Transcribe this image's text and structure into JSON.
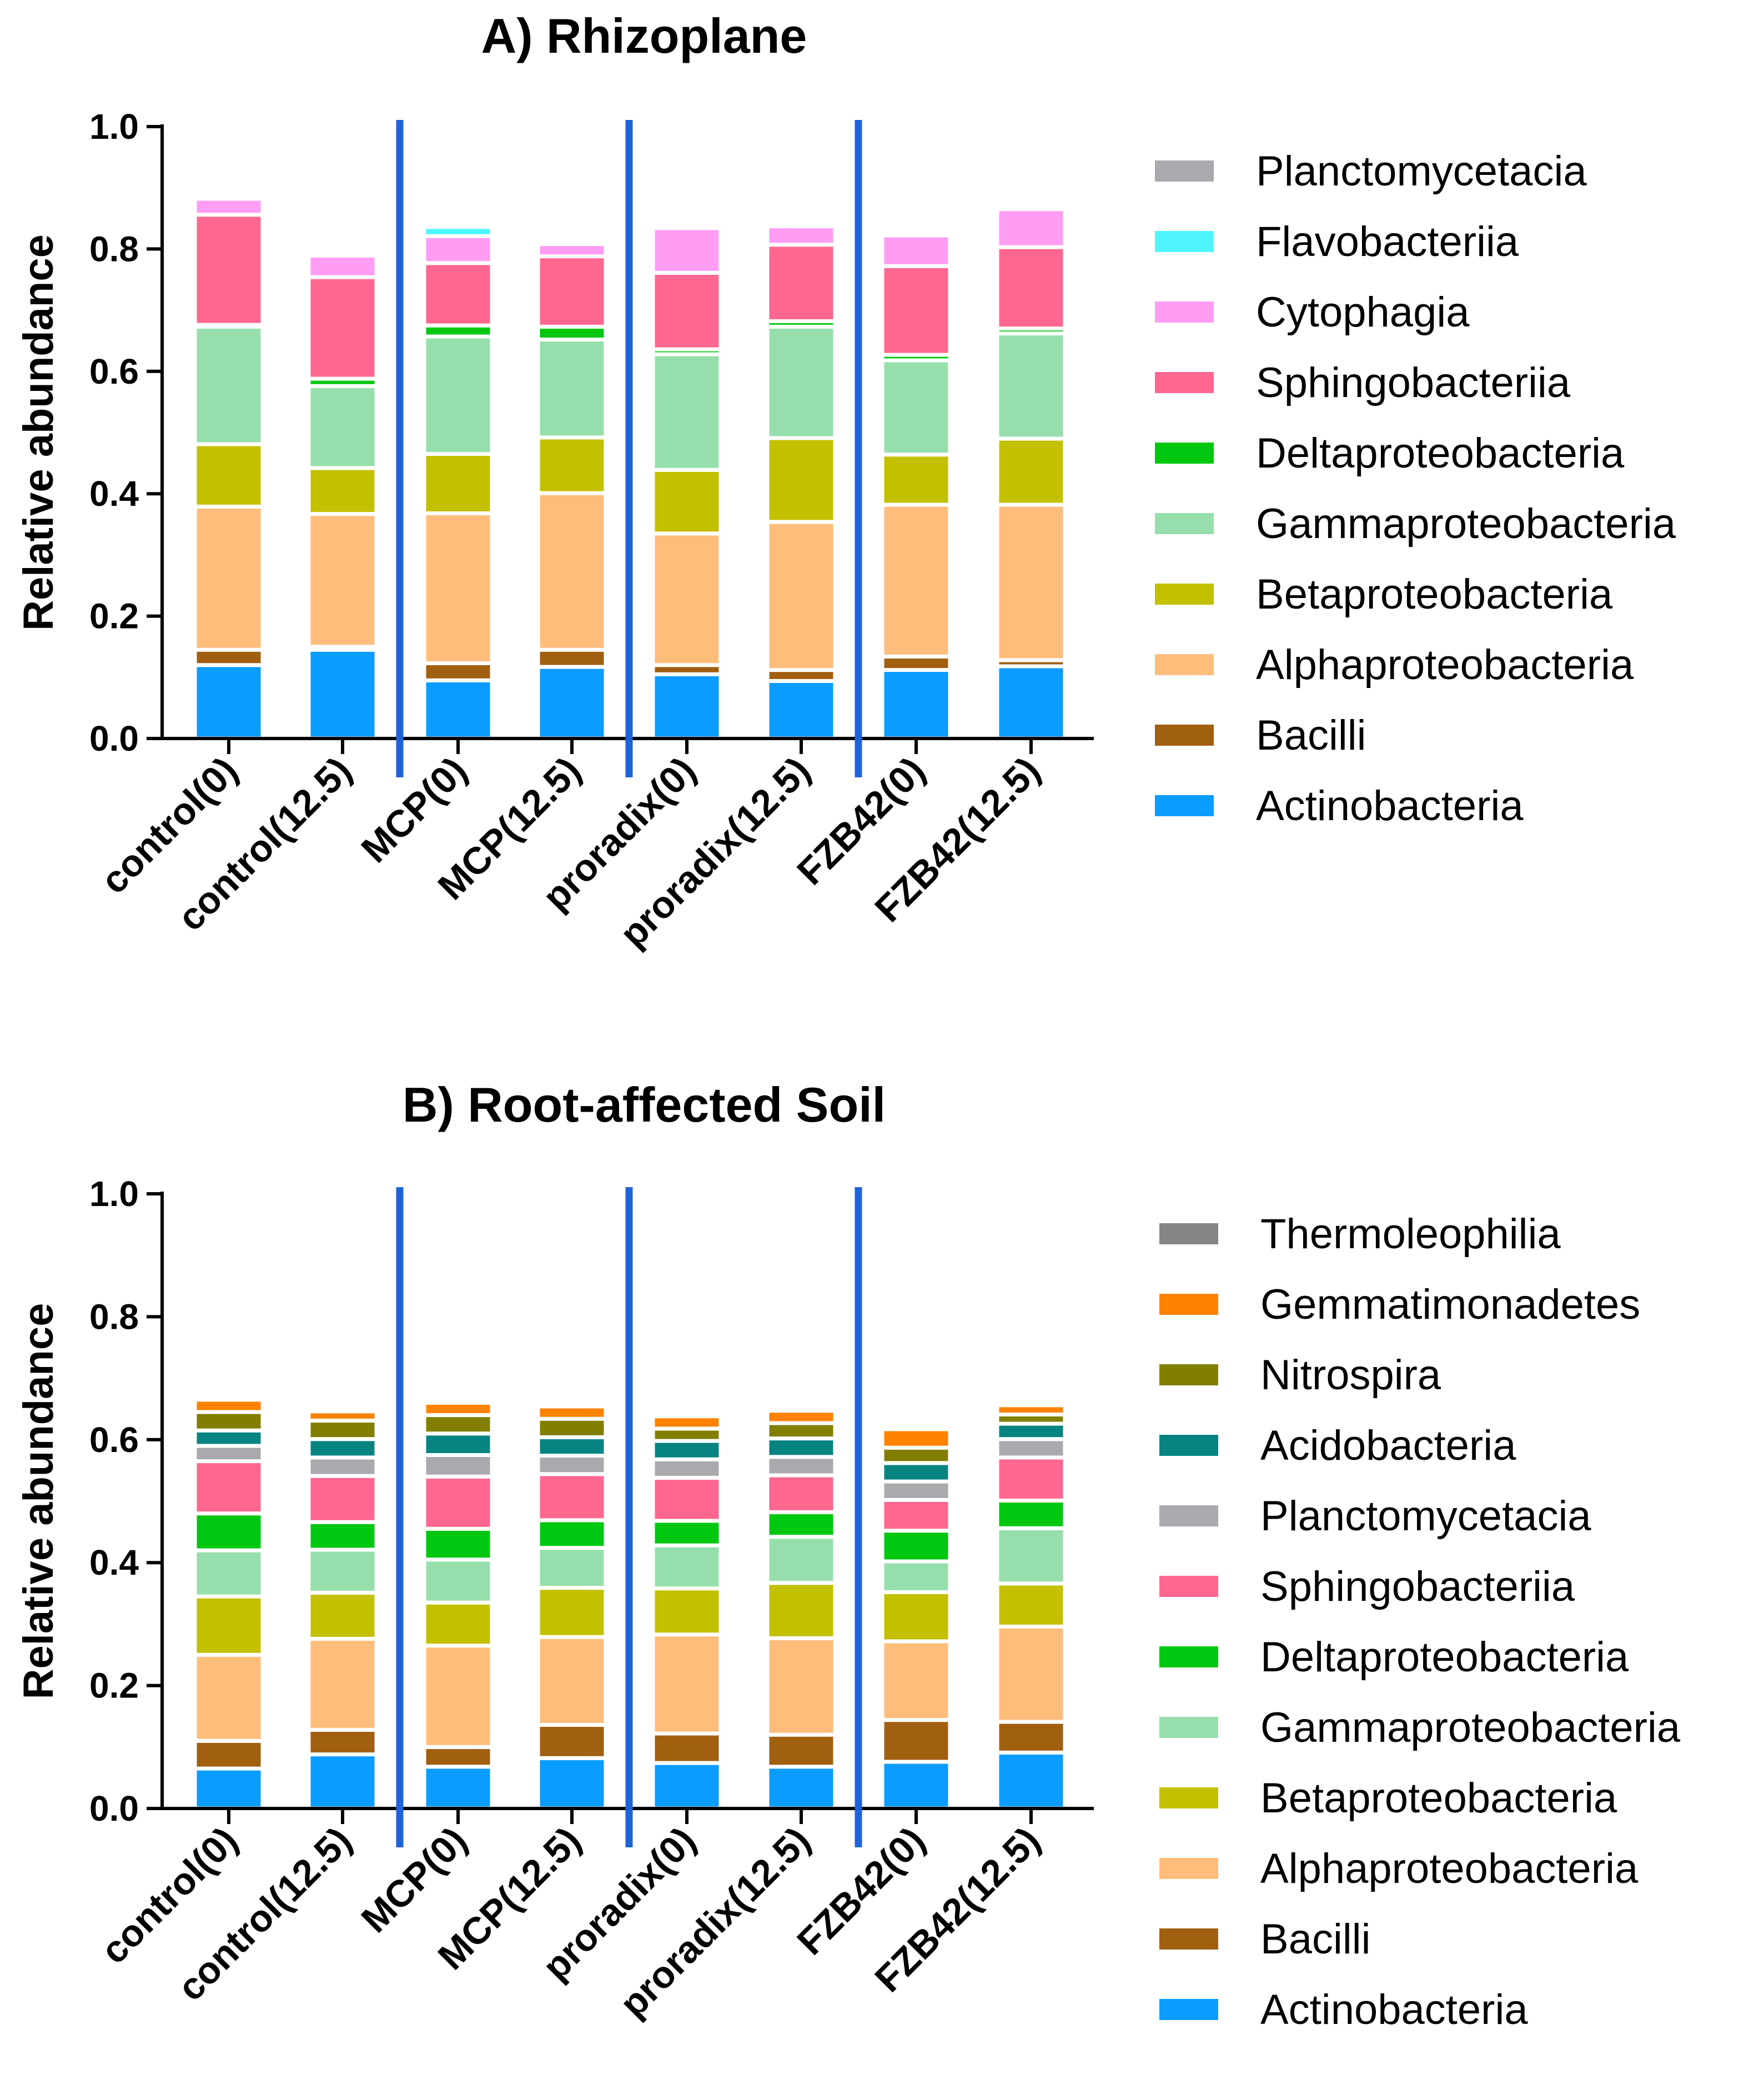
{
  "colors": {
    "Actinobacteria": "#0a9cff",
    "Bacilli": "#a15f10",
    "Alphaproteobacteria": "#ffbd7c",
    "Betaproteobacteria": "#c3c000",
    "Gammaproteobacteria": "#96dfac",
    "Deltaproteobacteria": "#00c811",
    "Sphingobacteriia": "#ff6690",
    "Cytophagia": "#ff9cf4",
    "Flavobacteriia": "#4ef5ff",
    "Planctomycetacia": "#a9a9ae",
    "Acidobacteria": "#078482",
    "Nitrospira": "#827f00",
    "Gemmatimonadetes": "#ff8200",
    "Thermoleophilia": "#858585",
    "separator": "#1f63d8"
  },
  "chart_data": [
    {
      "type": "bar",
      "stacked": true,
      "title": "A) Rhizoplane",
      "xlabel": "",
      "ylabel": "Relative abundance",
      "ylim": [
        0,
        1.0
      ],
      "yticks": [
        "0.0",
        "0.2",
        "0.4",
        "0.6",
        "0.8",
        "1.0"
      ],
      "categories": [
        "control(0)",
        "control(12.5)",
        "MCP(0)",
        "MCP(12.5)",
        "proradix(0)",
        "proradix(12.5)",
        "FZB42(0)",
        "FZB42(12.5)"
      ],
      "group_separators_after": [
        2,
        4,
        6
      ],
      "series": [
        {
          "name": "Actinobacteria",
          "values": [
            0.12,
            0.145,
            0.095,
            0.117,
            0.105,
            0.094,
            0.112,
            0.118
          ]
        },
        {
          "name": "Bacilli",
          "values": [
            0.025,
            0.005,
            0.028,
            0.028,
            0.015,
            0.018,
            0.022,
            0.01
          ]
        },
        {
          "name": "Alphaproteobacteria",
          "values": [
            0.234,
            0.217,
            0.245,
            0.256,
            0.215,
            0.242,
            0.248,
            0.254
          ]
        },
        {
          "name": "Betaproteobacteria",
          "values": [
            0.102,
            0.075,
            0.097,
            0.091,
            0.104,
            0.137,
            0.082,
            0.108
          ]
        },
        {
          "name": "Gammaproteobacteria",
          "values": [
            0.192,
            0.134,
            0.192,
            0.16,
            0.189,
            0.182,
            0.154,
            0.172
          ]
        },
        {
          "name": "Deltaproteobacteria",
          "values": [
            0.003,
            0.012,
            0.018,
            0.021,
            0.008,
            0.009,
            0.009,
            0.008
          ]
        },
        {
          "name": "Sphingobacteriia",
          "values": [
            0.18,
            0.166,
            0.102,
            0.115,
            0.125,
            0.125,
            0.145,
            0.133
          ]
        },
        {
          "name": "Cytophagia",
          "values": [
            0.026,
            0.035,
            0.044,
            0.02,
            0.073,
            0.03,
            0.05,
            0.062
          ]
        },
        {
          "name": "Flavobacteriia",
          "values": [
            0.0,
            0.0,
            0.015,
            0.005,
            0.0,
            0.0,
            0.0,
            0.0
          ]
        },
        {
          "name": "Planctomycetacia",
          "values": [
            0.0,
            0.0,
            0.005,
            0.006,
            0.0,
            0.0,
            0.0,
            0.0
          ]
        }
      ],
      "legend": [
        "Planctomycetacia",
        "Flavobacteriia",
        "Cytophagia",
        "Sphingobacteriia",
        "Deltaproteobacteria",
        "Gammaproteobacteria",
        "Betaproteobacteria",
        "Alphaproteobacteria",
        "Bacilli",
        "Actinobacteria"
      ],
      "legend_position": "right"
    },
    {
      "type": "bar",
      "stacked": true,
      "title": "B) Root-affected Soil",
      "xlabel": "",
      "ylabel": "Relative abundance",
      "ylim": [
        0,
        1.0
      ],
      "yticks": [
        "0.0",
        "0.2",
        "0.4",
        "0.6",
        "0.8",
        "1.0"
      ],
      "categories": [
        "control(0)",
        "control(12.5)",
        "MCP(0)",
        "MCP(12.5)",
        "proradix(0)",
        "proradix(12.5)",
        "FZB42(0)",
        "FZB42(12.5)"
      ],
      "group_separators_after": [
        2,
        4,
        6
      ],
      "series": [
        {
          "name": "Actinobacteria",
          "values": [
            0.065,
            0.088,
            0.068,
            0.082,
            0.074,
            0.068,
            0.076,
            0.091
          ]
        },
        {
          "name": "Bacilli",
          "values": [
            0.045,
            0.04,
            0.032,
            0.054,
            0.048,
            0.052,
            0.068,
            0.05
          ]
        },
        {
          "name": "Alphaproteobacteria",
          "values": [
            0.14,
            0.148,
            0.165,
            0.143,
            0.161,
            0.157,
            0.128,
            0.155
          ]
        },
        {
          "name": "Betaproteobacteria",
          "values": [
            0.095,
            0.075,
            0.07,
            0.08,
            0.075,
            0.09,
            0.08,
            0.07
          ]
        },
        {
          "name": "Gammaproteobacteria",
          "values": [
            0.075,
            0.07,
            0.07,
            0.065,
            0.07,
            0.075,
            0.05,
            0.09
          ]
        },
        {
          "name": "Deltaproteobacteria",
          "values": [
            0.06,
            0.045,
            0.05,
            0.045,
            0.04,
            0.04,
            0.05,
            0.045
          ]
        },
        {
          "name": "Sphingobacteriia",
          "values": [
            0.085,
            0.075,
            0.085,
            0.075,
            0.07,
            0.06,
            0.05,
            0.07
          ]
        },
        {
          "name": "Planctomycetacia",
          "values": [
            0.025,
            0.03,
            0.035,
            0.03,
            0.03,
            0.03,
            0.03,
            0.03
          ]
        },
        {
          "name": "Acidobacteria",
          "values": [
            0.025,
            0.03,
            0.035,
            0.03,
            0.03,
            0.03,
            0.03,
            0.025
          ]
        },
        {
          "name": "Nitrospira",
          "values": [
            0.03,
            0.03,
            0.03,
            0.03,
            0.02,
            0.025,
            0.025,
            0.015
          ]
        },
        {
          "name": "Gemmatimonadetes",
          "values": [
            0.02,
            0.015,
            0.02,
            0.02,
            0.02,
            0.02,
            0.03,
            0.015
          ]
        },
        {
          "name": "Thermoleophilia",
          "values": [
            0.0,
            0.0,
            0.0,
            0.0,
            0.0,
            0.0,
            0.0,
            0.0
          ]
        }
      ],
      "legend": [
        "Thermoleophilia",
        "Gemmatimonadetes",
        "Nitrospira",
        "Acidobacteria",
        "Planctomycetacia",
        "Sphingobacteriia",
        "Deltaproteobacteria",
        "Gammaproteobacteria",
        "Betaproteobacteria",
        "Alphaproteobacteria",
        "Bacilli",
        "Actinobacteria"
      ],
      "legend_position": "right"
    }
  ]
}
